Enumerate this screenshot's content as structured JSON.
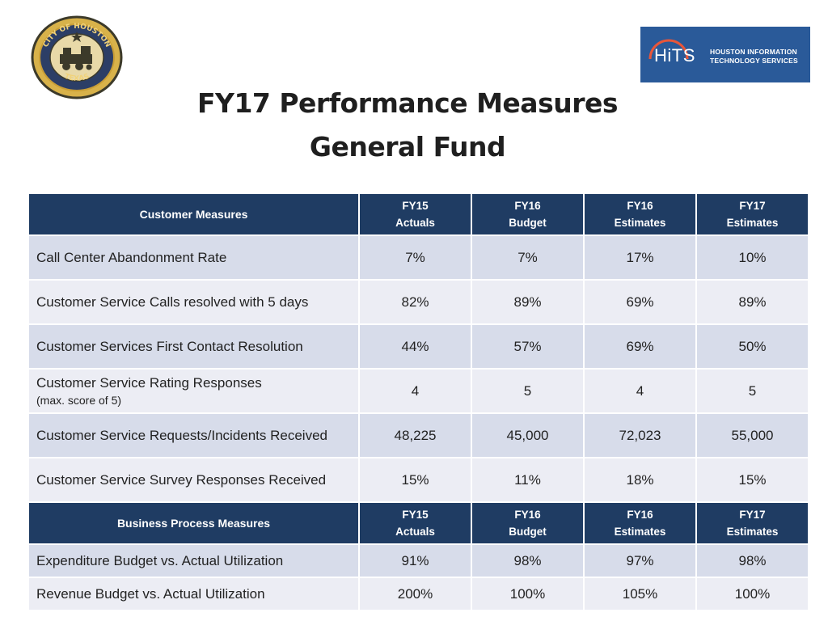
{
  "seal": {
    "ring_text_top": "CITY OF HOUSTON",
    "ring_text_bottom": "TEXAS"
  },
  "hits_logo": {
    "mark": "HiTS",
    "line1": "HOUSTON INFORMATION",
    "line2": "TECHNOLOGY SERVICES"
  },
  "title": {
    "line1": "FY17 Performance Measures",
    "line2": "General Fund"
  },
  "customer_header": {
    "label": "Customer Measures",
    "columns": [
      {
        "top": "FY15",
        "bottom": "Actuals"
      },
      {
        "top": "FY16",
        "bottom": "Budget"
      },
      {
        "top": "FY16",
        "bottom": "Estimates"
      },
      {
        "top": "FY17",
        "bottom": "Estimates"
      }
    ]
  },
  "customer_rows": [
    {
      "name": "Call Center Abandonment Rate",
      "values": [
        "7%",
        "7%",
        "17%",
        "10%"
      ]
    },
    {
      "name": "Customer Service Calls resolved with 5 days",
      "values": [
        "82%",
        "89%",
        "69%",
        "89%"
      ]
    },
    {
      "name": "Customer Services First Contact Resolution",
      "values": [
        "44%",
        "57%",
        "69%",
        "50%"
      ]
    },
    {
      "name": "Customer Service Rating Responses",
      "note": "(max. score of 5)",
      "values": [
        "4",
        "5",
        "4",
        "5"
      ]
    },
    {
      "name": "Customer Service Requests/Incidents Received",
      "values": [
        "48,225",
        "45,000",
        "72,023",
        "55,000"
      ]
    },
    {
      "name": "Customer Service Survey Responses Received",
      "values": [
        "15%",
        "11%",
        "18%",
        "15%"
      ]
    }
  ],
  "business_header": {
    "label": "Business Process Measures",
    "columns": [
      {
        "top": "FY15",
        "bottom": "Actuals"
      },
      {
        "top": "FY16",
        "bottom": "Budget"
      },
      {
        "top": "FY16",
        "bottom": "Estimates"
      },
      {
        "top": "FY17",
        "bottom": "Estimates"
      }
    ]
  },
  "business_rows": [
    {
      "name": "Expenditure Budget vs. Actual Utilization",
      "values": [
        "91%",
        "98%",
        "97%",
        "98%"
      ]
    },
    {
      "name": "Revenue Budget vs. Actual Utilization",
      "values": [
        "200%",
        "100%",
        "105%",
        "100%"
      ]
    }
  ],
  "colors": {
    "header_bg": "#1f3c63",
    "row_dark": "#d7dcea",
    "row_light": "#ecedf4",
    "logo_bg": "#2a5a99"
  }
}
